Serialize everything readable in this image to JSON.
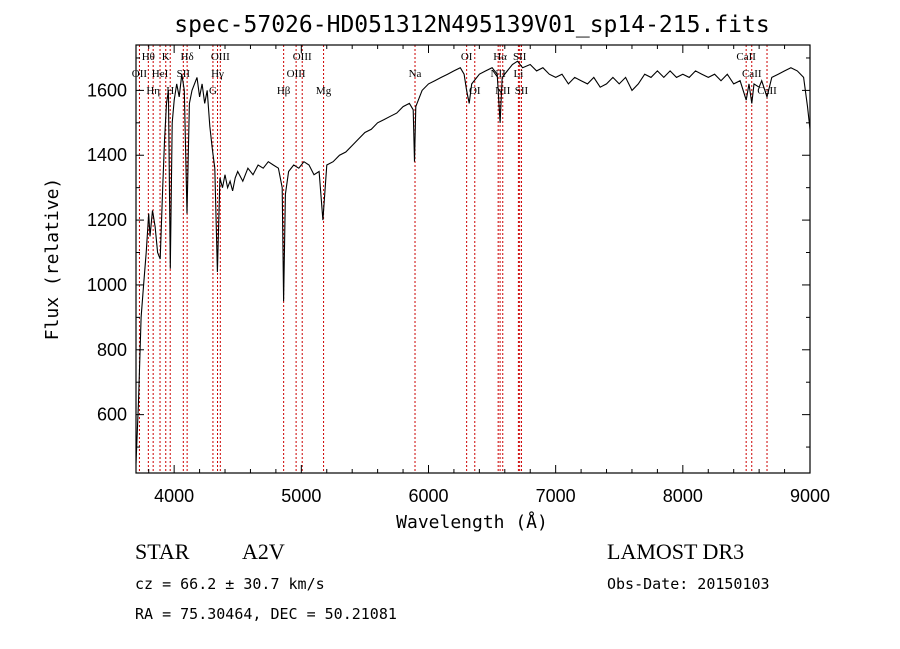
{
  "chart_data": {
    "type": "line",
    "title": "spec-57026-HD051312N495139V01_sp14-215.fits",
    "xlabel": "Wavelength (Å)",
    "ylabel": "Flux (relative)",
    "xlim": [
      3700,
      9000
    ],
    "ylim": [
      420,
      1740
    ],
    "x_ticks": [
      4000,
      5000,
      6000,
      7000,
      8000,
      9000
    ],
    "y_ticks": [
      600,
      800,
      1000,
      1200,
      1400,
      1600
    ],
    "series": [
      {
        "color": "#000000",
        "points": [
          [
            3700,
            450
          ],
          [
            3720,
            640
          ],
          [
            3740,
            900
          ],
          [
            3760,
            1000
          ],
          [
            3780,
            1100
          ],
          [
            3800,
            1220
          ],
          [
            3810,
            1150
          ],
          [
            3830,
            1230
          ],
          [
            3850,
            1180
          ],
          [
            3870,
            1100
          ],
          [
            3890,
            1080
          ],
          [
            3910,
            1300
          ],
          [
            3925,
            1450
          ],
          [
            3940,
            1560
          ],
          [
            3955,
            1600
          ],
          [
            3970,
            1050
          ],
          [
            3985,
            1500
          ],
          [
            4000,
            1570
          ],
          [
            4020,
            1620
          ],
          [
            4040,
            1580
          ],
          [
            4060,
            1650
          ],
          [
            4080,
            1600
          ],
          [
            4101,
            1220
          ],
          [
            4120,
            1560
          ],
          [
            4140,
            1600
          ],
          [
            4160,
            1620
          ],
          [
            4180,
            1640
          ],
          [
            4200,
            1580
          ],
          [
            4220,
            1620
          ],
          [
            4240,
            1560
          ],
          [
            4260,
            1600
          ],
          [
            4280,
            1490
          ],
          [
            4300,
            1420
          ],
          [
            4320,
            1360
          ],
          [
            4340,
            1040
          ],
          [
            4360,
            1330
          ],
          [
            4380,
            1300
          ],
          [
            4400,
            1340
          ],
          [
            4420,
            1300
          ],
          [
            4440,
            1320
          ],
          [
            4460,
            1290
          ],
          [
            4480,
            1330
          ],
          [
            4500,
            1350
          ],
          [
            4540,
            1320
          ],
          [
            4580,
            1360
          ],
          [
            4620,
            1340
          ],
          [
            4660,
            1370
          ],
          [
            4700,
            1360
          ],
          [
            4740,
            1380
          ],
          [
            4780,
            1370
          ],
          [
            4820,
            1360
          ],
          [
            4850,
            1300
          ],
          [
            4861,
            950
          ],
          [
            4875,
            1280
          ],
          [
            4900,
            1350
          ],
          [
            4940,
            1370
          ],
          [
            4980,
            1360
          ],
          [
            5020,
            1380
          ],
          [
            5060,
            1370
          ],
          [
            5100,
            1340
          ],
          [
            5140,
            1350
          ],
          [
            5170,
            1200
          ],
          [
            5200,
            1370
          ],
          [
            5250,
            1380
          ],
          [
            5300,
            1400
          ],
          [
            5350,
            1410
          ],
          [
            5400,
            1430
          ],
          [
            5450,
            1450
          ],
          [
            5500,
            1470
          ],
          [
            5550,
            1480
          ],
          [
            5600,
            1500
          ],
          [
            5650,
            1510
          ],
          [
            5700,
            1520
          ],
          [
            5750,
            1530
          ],
          [
            5800,
            1550
          ],
          [
            5850,
            1560
          ],
          [
            5880,
            1540
          ],
          [
            5890,
            1380
          ],
          [
            5900,
            1550
          ],
          [
            5950,
            1600
          ],
          [
            6000,
            1620
          ],
          [
            6050,
            1630
          ],
          [
            6100,
            1640
          ],
          [
            6150,
            1650
          ],
          [
            6200,
            1660
          ],
          [
            6250,
            1670
          ],
          [
            6280,
            1650
          ],
          [
            6300,
            1600
          ],
          [
            6320,
            1560
          ],
          [
            6340,
            1620
          ],
          [
            6400,
            1650
          ],
          [
            6450,
            1660
          ],
          [
            6500,
            1670
          ],
          [
            6540,
            1650
          ],
          [
            6563,
            1500
          ],
          [
            6580,
            1640
          ],
          [
            6620,
            1660
          ],
          [
            6660,
            1680
          ],
          [
            6700,
            1690
          ],
          [
            6740,
            1670
          ],
          [
            6800,
            1680
          ],
          [
            6850,
            1660
          ],
          [
            6900,
            1670
          ],
          [
            6950,
            1650
          ],
          [
            7000,
            1640
          ],
          [
            7050,
            1650
          ],
          [
            7100,
            1620
          ],
          [
            7150,
            1640
          ],
          [
            7200,
            1630
          ],
          [
            7250,
            1620
          ],
          [
            7300,
            1640
          ],
          [
            7350,
            1610
          ],
          [
            7400,
            1620
          ],
          [
            7450,
            1640
          ],
          [
            7500,
            1620
          ],
          [
            7550,
            1640
          ],
          [
            7600,
            1600
          ],
          [
            7650,
            1620
          ],
          [
            7700,
            1650
          ],
          [
            7750,
            1640
          ],
          [
            7800,
            1660
          ],
          [
            7850,
            1640
          ],
          [
            7900,
            1660
          ],
          [
            7950,
            1640
          ],
          [
            8000,
            1650
          ],
          [
            8050,
            1640
          ],
          [
            8100,
            1660
          ],
          [
            8150,
            1650
          ],
          [
            8200,
            1640
          ],
          [
            8250,
            1650
          ],
          [
            8300,
            1630
          ],
          [
            8350,
            1650
          ],
          [
            8400,
            1620
          ],
          [
            8450,
            1630
          ],
          [
            8498,
            1570
          ],
          [
            8520,
            1620
          ],
          [
            8542,
            1560
          ],
          [
            8560,
            1620
          ],
          [
            8600,
            1610
          ],
          [
            8620,
            1630
          ],
          [
            8662,
            1580
          ],
          [
            8700,
            1640
          ],
          [
            8750,
            1650
          ],
          [
            8800,
            1660
          ],
          [
            8850,
            1670
          ],
          [
            8900,
            1660
          ],
          [
            8950,
            1640
          ],
          [
            8980,
            1550
          ],
          [
            9000,
            1480
          ]
        ]
      }
    ],
    "line_markers": [
      {
        "w": 3727,
        "labels": [
          "OII"
        ],
        "row": 1
      },
      {
        "w": 3797,
        "labels": [
          "Hθ"
        ],
        "row": 0
      },
      {
        "w": 3835,
        "labels": [
          "Hη"
        ],
        "row": 2
      },
      {
        "w": 3889,
        "labels": [
          "HeI"
        ],
        "row": 1
      },
      {
        "w": 3934,
        "labels": [
          "K"
        ],
        "row": 0
      },
      {
        "w": 3969,
        "labels": [
          "H"
        ],
        "row": 2
      },
      {
        "w": 4072,
        "labels": [
          "SII"
        ],
        "row": 1
      },
      {
        "w": 4102,
        "labels": [
          "Hδ"
        ],
        "row": 0
      },
      {
        "w": 4305,
        "labels": [
          "G"
        ],
        "row": 2
      },
      {
        "w": 4341,
        "labels": [
          "Hγ"
        ],
        "row": 1
      },
      {
        "w": 4363,
        "labels": [
          "OIII"
        ],
        "row": 0
      },
      {
        "w": 4861,
        "labels": [
          "Hβ"
        ],
        "row": 2
      },
      {
        "w": 4959,
        "labels": [
          "OIII"
        ],
        "row": 1
      },
      {
        "w": 5007,
        "labels": [
          "OIII"
        ],
        "row": 0
      },
      {
        "w": 5175,
        "labels": [
          "Mg"
        ],
        "row": 2
      },
      {
        "w": 5894,
        "labels": [
          "Na"
        ],
        "row": 1
      },
      {
        "w": 6300,
        "labels": [
          "OI"
        ],
        "row": 0
      },
      {
        "w": 6364,
        "labels": [
          "OI"
        ],
        "row": 2
      },
      {
        "w": 6548,
        "labels": [
          "NII"
        ],
        "row": 1
      },
      {
        "w": 6563,
        "labels": [
          "Hα"
        ],
        "row": 0
      },
      {
        "w": 6584,
        "labels": [
          "NII"
        ],
        "row": 2
      },
      {
        "w": 6707,
        "labels": [
          "Li"
        ],
        "row": 1
      },
      {
        "w": 6717,
        "labels": [
          "SII"
        ],
        "row": 0
      },
      {
        "w": 6731,
        "labels": [
          "SII"
        ],
        "row": 2
      },
      {
        "w": 8498,
        "labels": [
          "CaII"
        ],
        "row": 0
      },
      {
        "w": 8542,
        "labels": [
          "CaII"
        ],
        "row": 1
      },
      {
        "w": 8662,
        "labels": [
          "CaII"
        ],
        "row": 2
      }
    ]
  },
  "info": {
    "object_class": "STAR",
    "subclass": "A2V",
    "survey": "LAMOST DR3",
    "cz": "cz = 66.2 ± 30.7 km/s",
    "obs_date": "Obs-Date: 20150103",
    "coords": "RA =  75.30464, DEC =  50.21081"
  },
  "colors": {
    "line_marker": "#cc0000",
    "spectrum": "#000000"
  }
}
